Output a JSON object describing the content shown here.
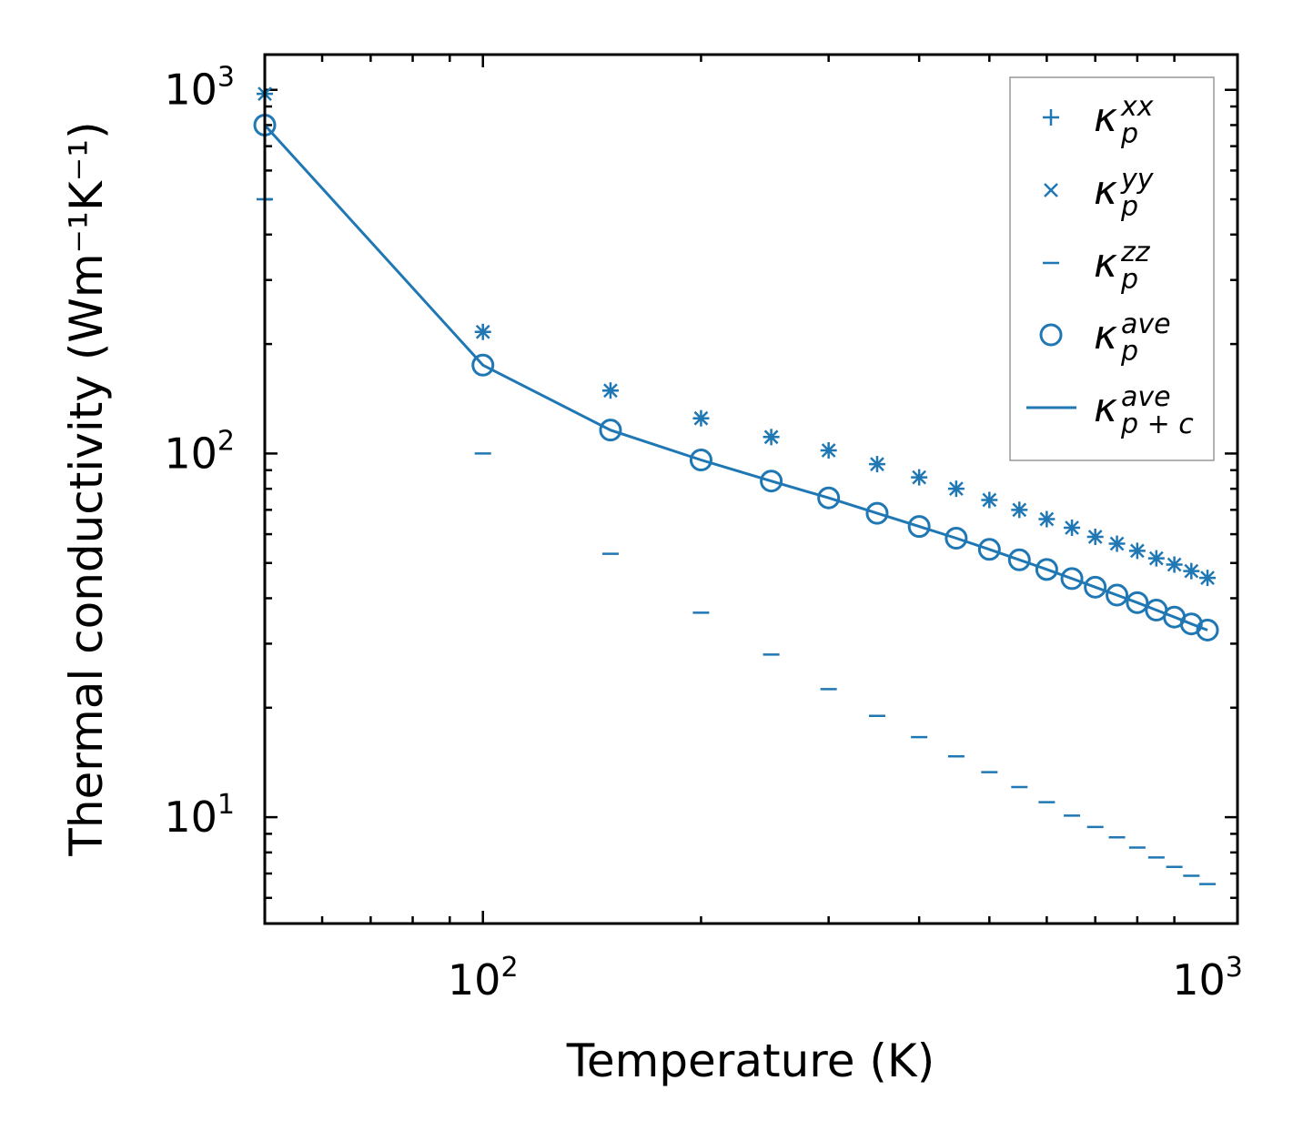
{
  "chart_data": {
    "type": "scatter",
    "xscale": "log",
    "yscale": "log",
    "xlim": [
      50,
      1100
    ],
    "ylim": [
      5.1,
      1250
    ],
    "xlabel": "Temperature (K)",
    "ylabel": "Thermal conductivity (Wm⁻¹K⁻¹)",
    "x_ticks": [
      {
        "base": "10",
        "exp": "2",
        "value": 100
      },
      {
        "base": "10",
        "exp": "3",
        "value": 1000
      }
    ],
    "y_ticks": [
      {
        "base": "10",
        "exp": "1",
        "value": 10
      },
      {
        "base": "10",
        "exp": "2",
        "value": 100
      },
      {
        "base": "10",
        "exp": "3",
        "value": 1000
      }
    ],
    "x": [
      50,
      100,
      150,
      200,
      250,
      300,
      350,
      400,
      450,
      500,
      550,
      600,
      650,
      700,
      750,
      800,
      850,
      900,
      950,
      1000
    ],
    "series": [
      {
        "key": "kxx",
        "name": "κ_p^xx",
        "base": "κ",
        "sub": "p",
        "sup": "xx",
        "marker": "plus",
        "values": [
          975,
          216,
          149,
          125,
          111,
          102,
          93.5,
          86,
          80,
          74.5,
          70,
          66,
          62.5,
          59,
          56.5,
          54,
          51.5,
          49.5,
          47.5,
          45.5
        ]
      },
      {
        "key": "kyy",
        "name": "κ_p^yy",
        "base": "κ",
        "sub": "p",
        "sup": "yy",
        "marker": "x",
        "values": [
          975,
          216,
          149,
          125,
          111,
          102,
          93.5,
          86,
          80,
          74.5,
          70,
          66,
          62.5,
          59,
          56.5,
          54,
          51.5,
          49.5,
          47.5,
          45.5
        ]
      },
      {
        "key": "kzz",
        "name": "κ_p^zz",
        "base": "κ",
        "sub": "p",
        "sup": "zz",
        "marker": "hline",
        "values": [
          500,
          100,
          53,
          36.5,
          28,
          22.5,
          19,
          16.6,
          14.7,
          13.3,
          12.1,
          11.0,
          10.1,
          9.4,
          8.8,
          8.25,
          7.75,
          7.3,
          6.9,
          6.55
        ]
      },
      {
        "key": "kave",
        "name": "κ_p^ave",
        "base": "κ",
        "sub": "p",
        "sup": "ave",
        "marker": "circle",
        "values": [
          800,
          175,
          116,
          96,
          84,
          75.5,
          68.5,
          63,
          58.5,
          54.5,
          51,
          48,
          45.3,
          42.9,
          40.8,
          38.9,
          37.1,
          35.5,
          34,
          32.7
        ]
      },
      {
        "key": "kpc",
        "name": "κ_p+c^ave",
        "base": "κ",
        "sub": "p + c",
        "sup": "ave",
        "marker": "line",
        "values": [
          800,
          175,
          116,
          96,
          84,
          75.5,
          68.5,
          63,
          58.5,
          54.5,
          51,
          48,
          45.3,
          42.9,
          40.8,
          38.9,
          37.1,
          35.5,
          34,
          32.7
        ]
      }
    ],
    "legend_position": "top-right",
    "color": "#1f77b4"
  }
}
